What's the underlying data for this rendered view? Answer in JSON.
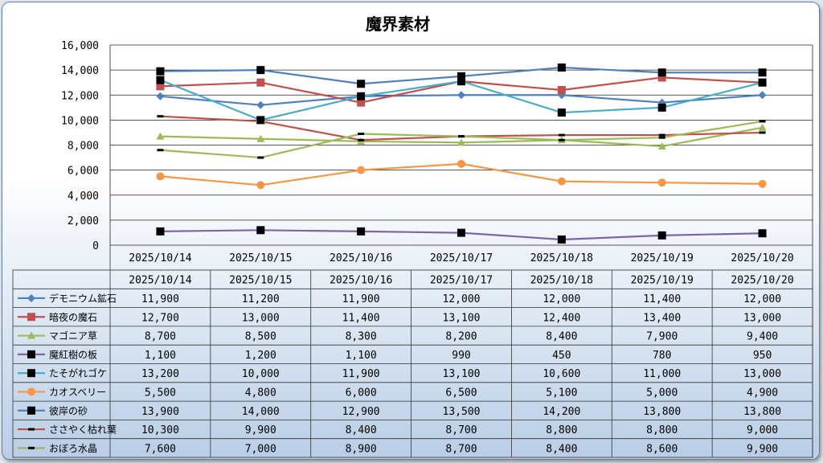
{
  "chart_data": {
    "type": "line",
    "title": "魔界素材",
    "categories": [
      "2025/10/14",
      "2025/10/15",
      "2025/10/16",
      "2025/10/17",
      "2025/10/18",
      "2025/10/19",
      "2025/10/20"
    ],
    "ylim": [
      0,
      16000
    ],
    "yticks": [
      0,
      2000,
      4000,
      6000,
      8000,
      10000,
      12000,
      14000,
      16000
    ],
    "ytick_labels": [
      "0",
      "2,000",
      "4,000",
      "6,000",
      "8,000",
      "10,000",
      "12,000",
      "14,000",
      "16,000"
    ],
    "grid": true,
    "legend": "data-table-below",
    "series": [
      {
        "name": "デモニウム鉱石",
        "color": "#4f81bd",
        "marker": "diamond",
        "values": [
          11900,
          11200,
          11900,
          12000,
          12000,
          11400,
          12000
        ],
        "labels": [
          "11,900",
          "11,200",
          "11,900",
          "12,000",
          "12,000",
          "11,400",
          "12,000"
        ]
      },
      {
        "name": "暗夜の魔石",
        "color": "#c0504d",
        "marker": "square",
        "values": [
          12700,
          13000,
          11400,
          13100,
          12400,
          13400,
          13000
        ],
        "labels": [
          "12,700",
          "13,000",
          "11,400",
          "13,100",
          "12,400",
          "13,400",
          "13,000"
        ]
      },
      {
        "name": "マゴニア草",
        "color": "#9bbb59",
        "marker": "triangle",
        "values": [
          8700,
          8500,
          8300,
          8200,
          8400,
          7900,
          9400
        ],
        "labels": [
          "8,700",
          "8,500",
          "8,300",
          "8,200",
          "8,400",
          "7,900",
          "9,400"
        ]
      },
      {
        "name": "魔紅樹の板",
        "color": "#8064a2",
        "marker": "black-square",
        "values": [
          1100,
          1200,
          1100,
          990,
          450,
          780,
          950
        ],
        "labels": [
          "1,100",
          "1,200",
          "1,100",
          "990",
          "450",
          "780",
          "950"
        ]
      },
      {
        "name": "たそがれゴケ",
        "color": "#4bacc6",
        "marker": "black-square",
        "values": [
          13200,
          10000,
          11900,
          13100,
          10600,
          11000,
          13000
        ],
        "labels": [
          "13,200",
          "10,000",
          "11,900",
          "13,100",
          "10,600",
          "11,000",
          "13,000"
        ]
      },
      {
        "name": "カオスベリー",
        "color": "#f79646",
        "marker": "circle",
        "values": [
          5500,
          4800,
          6000,
          6500,
          5100,
          5000,
          4900
        ],
        "labels": [
          "5,500",
          "4,800",
          "6,000",
          "6,500",
          "5,100",
          "5,000",
          "4,900"
        ]
      },
      {
        "name": "彼岸の砂",
        "color": "#4f81bd",
        "marker": "black-square",
        "values": [
          13900,
          14000,
          12900,
          13500,
          14200,
          13800,
          13800
        ],
        "labels": [
          "13,900",
          "14,000",
          "12,900",
          "13,500",
          "14,200",
          "13,800",
          "13,800"
        ]
      },
      {
        "name": "ささやく枯れ葉",
        "color": "#c0504d",
        "marker": "dash",
        "values": [
          10300,
          9900,
          8400,
          8700,
          8800,
          8800,
          9000
        ],
        "labels": [
          "10,300",
          "9,900",
          "8,400",
          "8,700",
          "8,800",
          "8,800",
          "9,000"
        ]
      },
      {
        "name": "おぼろ水晶",
        "color": "#9bbb59",
        "marker": "dash",
        "values": [
          7600,
          7000,
          8900,
          8700,
          8400,
          8600,
          9900
        ],
        "labels": [
          "7,600",
          "7,000",
          "8,900",
          "8,700",
          "8,400",
          "8,600",
          "9,900"
        ]
      }
    ]
  }
}
